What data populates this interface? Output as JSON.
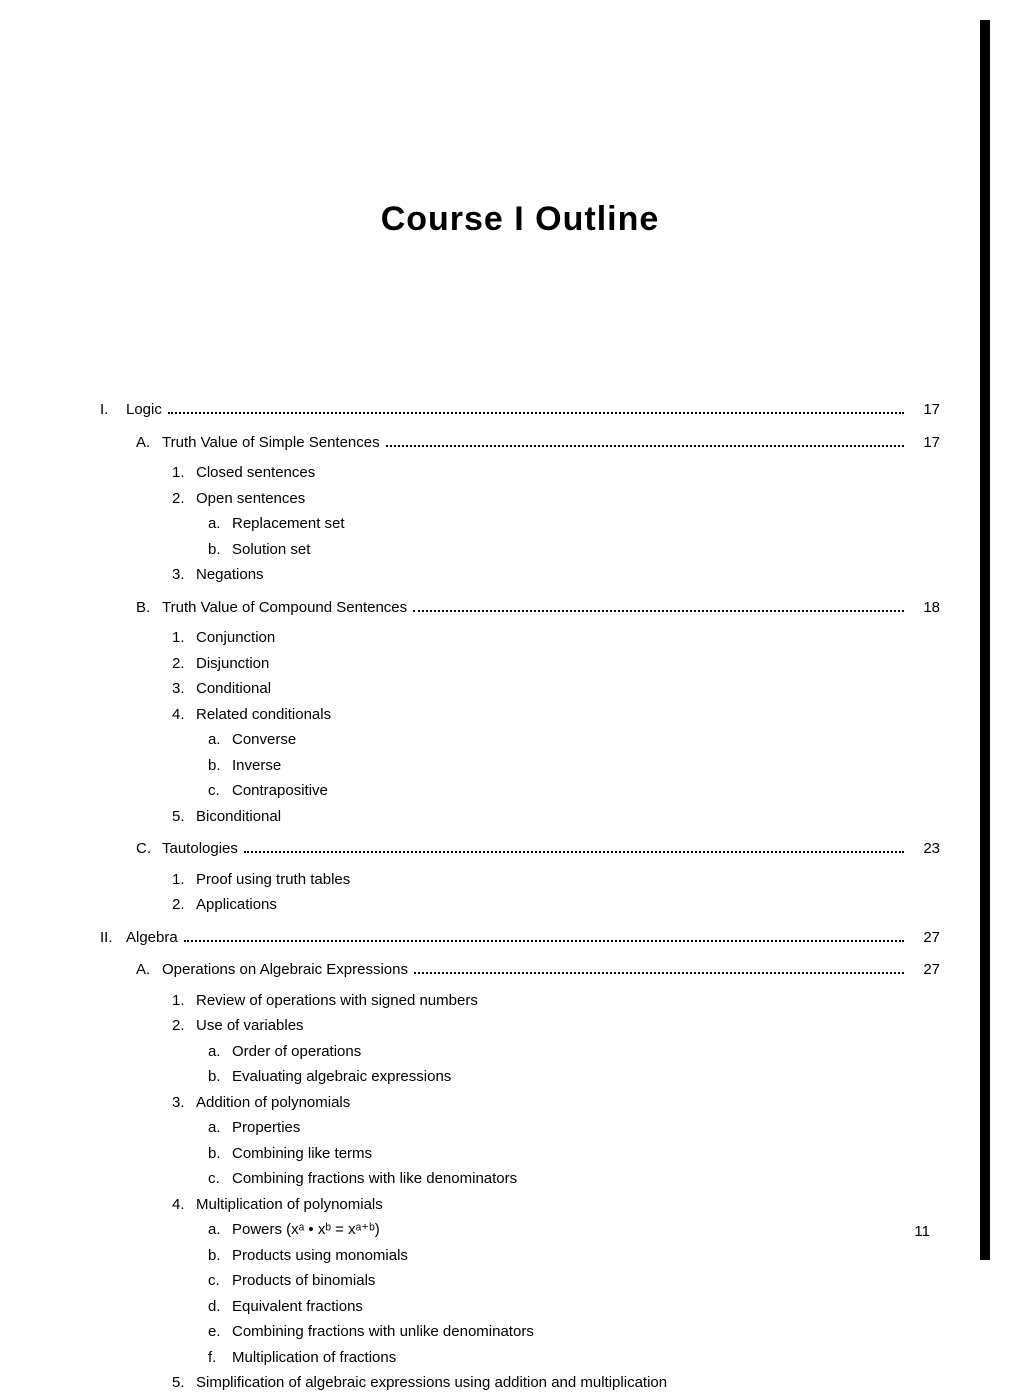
{
  "title": "Course I Outline",
  "pageNumber": "11",
  "colors": {
    "text": "#000000",
    "background": "#ffffff",
    "scanEdge": "#000000"
  },
  "typography": {
    "titleSize": 34,
    "bodySize": 15,
    "titleWeight": "bold"
  },
  "outline": [
    {
      "num": "I.",
      "label": "Logic",
      "page": "17",
      "subs": [
        {
          "num": "A.",
          "label": "Truth Value of Simple Sentences",
          "page": "17",
          "items": [
            {
              "num": "1.",
              "label": "Closed sentences"
            },
            {
              "num": "2.",
              "label": "Open sentences",
              "subs": [
                {
                  "num": "a.",
                  "label": "Replacement set"
                },
                {
                  "num": "b.",
                  "label": "Solution set"
                }
              ]
            },
            {
              "num": "3.",
              "label": "Negations"
            }
          ]
        },
        {
          "num": "B.",
          "label": "Truth Value of Compound Sentences",
          "page": "18",
          "items": [
            {
              "num": "1.",
              "label": "Conjunction"
            },
            {
              "num": "2.",
              "label": "Disjunction"
            },
            {
              "num": "3.",
              "label": "Conditional"
            },
            {
              "num": "4.",
              "label": "Related conditionals",
              "subs": [
                {
                  "num": "a.",
                  "label": "Converse"
                },
                {
                  "num": "b.",
                  "label": "Inverse"
                },
                {
                  "num": "c.",
                  "label": "Contrapositive"
                }
              ]
            },
            {
              "num": "5.",
              "label": "Biconditional"
            }
          ]
        },
        {
          "num": "C.",
          "label": "Tautologies",
          "page": "23",
          "items": [
            {
              "num": "1.",
              "label": "Proof using truth tables"
            },
            {
              "num": "2.",
              "label": "Applications"
            }
          ]
        }
      ]
    },
    {
      "num": "II.",
      "label": "Algebra",
      "page": "27",
      "subs": [
        {
          "num": "A.",
          "label": "Operations on Algebraic Expressions",
          "page": "27",
          "items": [
            {
              "num": "1.",
              "label": "Review of operations with signed numbers"
            },
            {
              "num": "2.",
              "label": "Use of variables",
              "subs": [
                {
                  "num": "a.",
                  "label": "Order of operations"
                },
                {
                  "num": "b.",
                  "label": "Evaluating algebraic expressions"
                }
              ]
            },
            {
              "num": "3.",
              "label": "Addition of polynomials",
              "subs": [
                {
                  "num": "a.",
                  "label": "Properties"
                },
                {
                  "num": "b.",
                  "label": "Combining like terms"
                },
                {
                  "num": "c.",
                  "label": "Combining fractions with like denominators"
                }
              ]
            },
            {
              "num": "4.",
              "label": "Multiplication of polynomials",
              "subs": [
                {
                  "num": "a.",
                  "label": "Powers (xᵃ • xᵇ = xᵃ⁺ᵇ)"
                },
                {
                  "num": "b.",
                  "label": "Products using monomials"
                },
                {
                  "num": "c.",
                  "label": "Products of binomials"
                },
                {
                  "num": "d.",
                  "label": "Equivalent fractions"
                },
                {
                  "num": "e.",
                  "label": "Combining fractions with unlike denominators"
                },
                {
                  "num": "f.",
                  "label": "Multiplication of fractions"
                }
              ]
            },
            {
              "num": "5.",
              "label": "Simplification of algebraic expressions using addition and multiplication"
            }
          ]
        }
      ]
    }
  ]
}
